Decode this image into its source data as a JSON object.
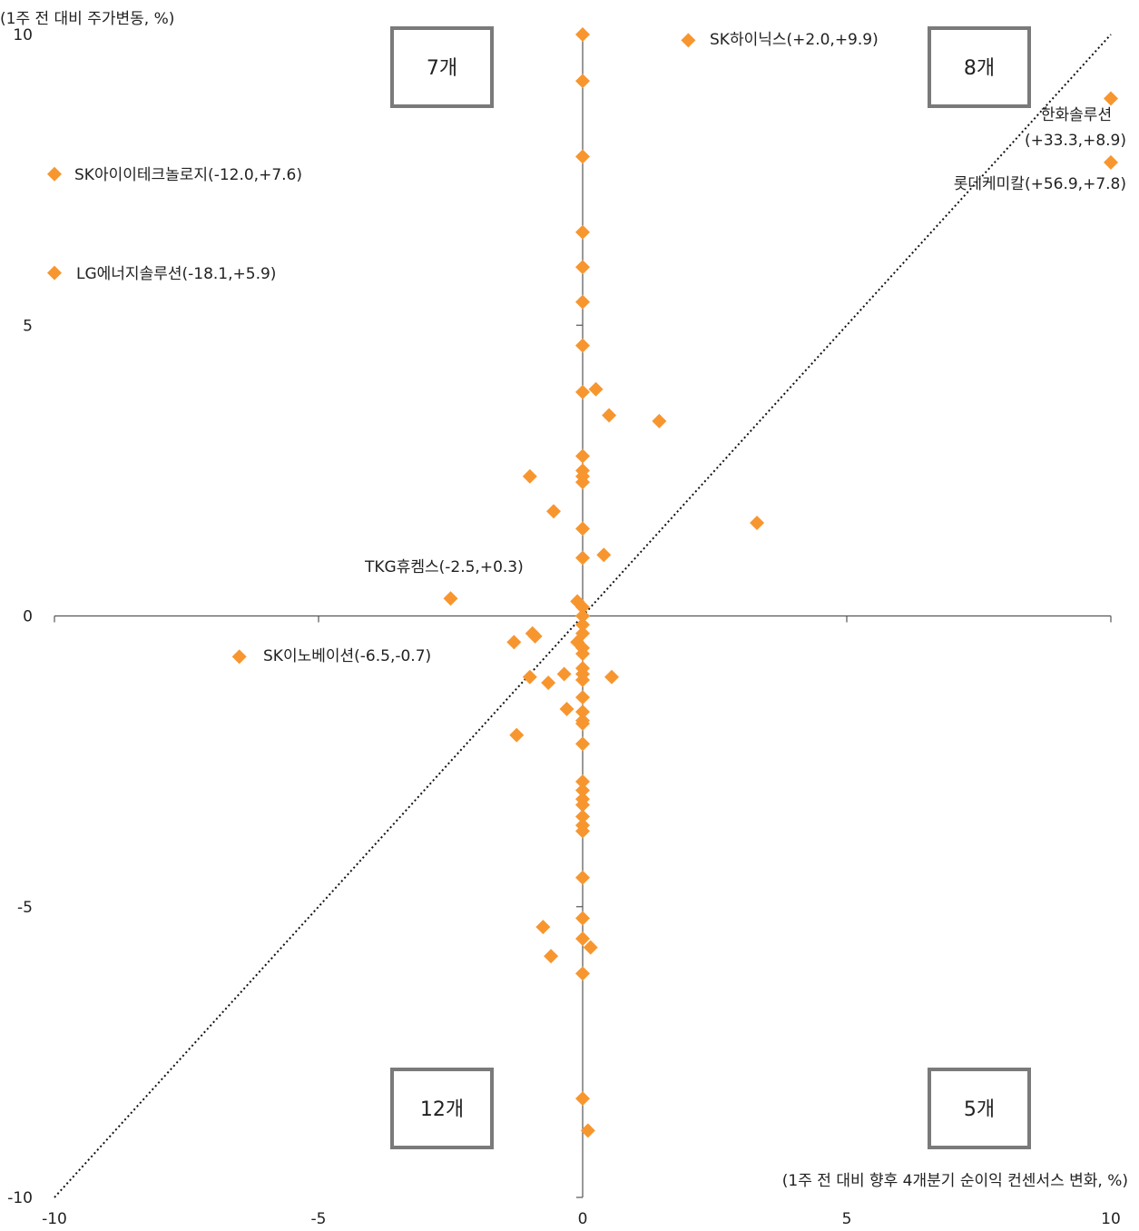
{
  "chart_data": {
    "type": "scatter",
    "title": "",
    "ylabel": "(1주 전 대비 주가변동, %)",
    "xlabel": "(1주 전 대비 향후 4개분기 순이익 컨센서스 변화, %)",
    "xlim": [
      -10,
      10
    ],
    "ylim": [
      -10,
      10
    ],
    "x_ticks": [
      "-10",
      "-5",
      "0",
      "5",
      "10"
    ],
    "y_ticks": [
      "10",
      "5",
      "0",
      "-5",
      "-10"
    ],
    "grid": false,
    "marker": "diamond",
    "marker_color": "#F7962F",
    "reference_line": {
      "x": [
        -10,
        10
      ],
      "y": [
        -10,
        10
      ],
      "style": "dotted"
    },
    "quadrant_counts": {
      "top_left": "7개",
      "top_right": "8개",
      "bottom_left": "12개",
      "bottom_right": "5개"
    },
    "points": [
      {
        "x": 2.0,
        "y": 9.9,
        "label": "SK하이닉스(+2.0,+9.9)"
      },
      {
        "x": 10,
        "y": 8.9,
        "label": "한화솔루션\n(+33.3,+8.9)"
      },
      {
        "x": 10,
        "y": 7.8,
        "label": "롯데케미칼(+56.9,+7.8)"
      },
      {
        "x": -10,
        "y": 7.6,
        "label": "SK아이이테크놀로지(-12.0,+7.6)"
      },
      {
        "x": -10,
        "y": 5.9,
        "label": "LG에너지솔루션(-18.1,+5.9)"
      },
      {
        "x": -2.5,
        "y": 0.3,
        "label": "TKG휴켐스(-2.5,+0.3)"
      },
      {
        "x": -6.5,
        "y": -0.7,
        "label": "SK이노베이션(-6.5,-0.7)"
      },
      {
        "x": 0,
        "y": 10.0
      },
      {
        "x": 0,
        "y": 9.2
      },
      {
        "x": 0,
        "y": 7.9
      },
      {
        "x": 0,
        "y": 6.6
      },
      {
        "x": 0,
        "y": 6.0
      },
      {
        "x": 0,
        "y": 5.4
      },
      {
        "x": 0,
        "y": 4.65
      },
      {
        "x": 0,
        "y": 3.85
      },
      {
        "x": 0.25,
        "y": 3.9
      },
      {
        "x": 0.5,
        "y": 3.45
      },
      {
        "x": 1.45,
        "y": 3.35
      },
      {
        "x": 0,
        "y": 2.75
      },
      {
        "x": 0,
        "y": 2.5
      },
      {
        "x": 0,
        "y": 2.4
      },
      {
        "x": 0,
        "y": 2.3
      },
      {
        "x": -1.0,
        "y": 2.4
      },
      {
        "x": -0.55,
        "y": 1.8
      },
      {
        "x": 0,
        "y": 1.5
      },
      {
        "x": 3.3,
        "y": 1.6
      },
      {
        "x": 0.4,
        "y": 1.05
      },
      {
        "x": 0,
        "y": 1.0
      },
      {
        "x": -0.1,
        "y": 0.25
      },
      {
        "x": 0,
        "y": 0.15
      },
      {
        "x": 0,
        "y": 0.0
      },
      {
        "x": 0,
        "y": -0.15
      },
      {
        "x": 0,
        "y": -0.3
      },
      {
        "x": -0.1,
        "y": -0.45
      },
      {
        "x": 0,
        "y": -0.55
      },
      {
        "x": 0,
        "y": -0.65
      },
      {
        "x": -1.3,
        "y": -0.45
      },
      {
        "x": -0.95,
        "y": -0.3
      },
      {
        "x": -0.9,
        "y": -0.35
      },
      {
        "x": 0,
        "y": -0.9
      },
      {
        "x": 0,
        "y": -1.0
      },
      {
        "x": 0,
        "y": -1.1
      },
      {
        "x": -1.0,
        "y": -1.05
      },
      {
        "x": -0.65,
        "y": -1.15
      },
      {
        "x": -0.35,
        "y": -1.0
      },
      {
        "x": 0.55,
        "y": -1.05
      },
      {
        "x": 0,
        "y": -1.4
      },
      {
        "x": -0.3,
        "y": -1.6
      },
      {
        "x": 0,
        "y": -1.65
      },
      {
        "x": 0,
        "y": -1.8
      },
      {
        "x": 0,
        "y": -1.85
      },
      {
        "x": -1.25,
        "y": -2.05
      },
      {
        "x": 0,
        "y": -2.2
      },
      {
        "x": 0,
        "y": -2.85
      },
      {
        "x": 0,
        "y": -3.0
      },
      {
        "x": 0,
        "y": -3.15
      },
      {
        "x": 0,
        "y": -3.25
      },
      {
        "x": 0,
        "y": -3.45
      },
      {
        "x": 0,
        "y": -3.6
      },
      {
        "x": 0,
        "y": -3.7
      },
      {
        "x": 0,
        "y": -4.5
      },
      {
        "x": 0,
        "y": -5.2
      },
      {
        "x": -0.75,
        "y": -5.35
      },
      {
        "x": 0,
        "y": -5.55
      },
      {
        "x": 0.15,
        "y": -5.7
      },
      {
        "x": -0.6,
        "y": -5.85
      },
      {
        "x": 0,
        "y": -6.15
      },
      {
        "x": 0,
        "y": -8.3
      },
      {
        "x": 0.1,
        "y": -8.85
      }
    ]
  }
}
